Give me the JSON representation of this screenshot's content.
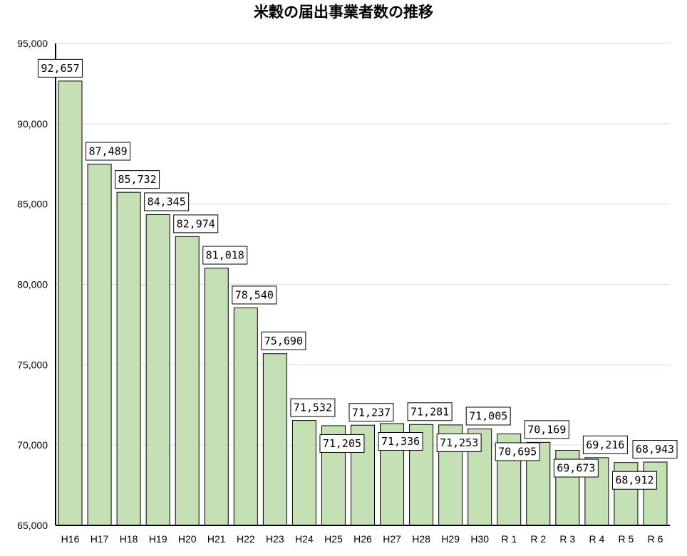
{
  "chart_data": {
    "type": "bar",
    "title": "米穀の届出事業者数の推移",
    "xlabel": "",
    "ylabel": "",
    "ylim": [
      65000,
      95000
    ],
    "yticks": [
      65000,
      70000,
      75000,
      80000,
      85000,
      90000,
      95000
    ],
    "ytick_labels": [
      "65,000",
      "70,000",
      "75,000",
      "80,000",
      "85,000",
      "90,000",
      "95,000"
    ],
    "grid": true,
    "categories": [
      "H16",
      "H17",
      "H18",
      "H19",
      "H20",
      "H21",
      "H22",
      "H23",
      "H24",
      "H25",
      "H26",
      "H27",
      "H28",
      "H29",
      "H30",
      "R 1",
      "R 2",
      "R 3",
      "R 4",
      "R 5",
      "R 6"
    ],
    "values": [
      92657,
      87489,
      85732,
      84345,
      82974,
      81018,
      78540,
      75690,
      71532,
      71205,
      71237,
      71336,
      71281,
      71253,
      71005,
      70695,
      70169,
      69673,
      69216,
      68912,
      68943
    ],
    "data_labels": [
      "92,657",
      "87,489",
      "85,732",
      "84,345",
      "82,974",
      "81,018",
      "78,540",
      "75,690",
      "71,532",
      "71,205",
      "71,237",
      "71,336",
      "71,281",
      "71,253",
      "71,005",
      "70,695",
      "70,169",
      "69,673",
      "69,216",
      "68,912",
      "68,943"
    ],
    "bar_color": "#c5e0b4",
    "bar_edge_color": "#000000",
    "grid_color": "#d9d9d9"
  }
}
